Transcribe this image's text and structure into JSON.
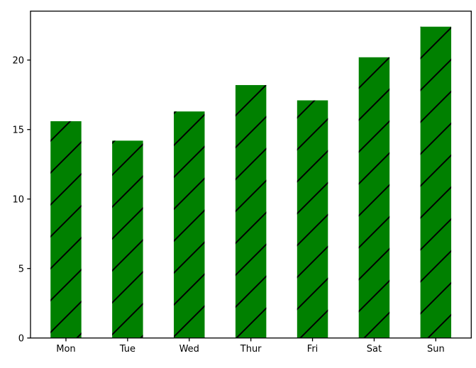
{
  "figure": {
    "background_color": "#ffffff"
  },
  "chart_data": {
    "type": "bar",
    "title": "",
    "xlabel": "",
    "ylabel": "",
    "categories": [
      "Mon",
      "Tue",
      "Wed",
      "Thur",
      "Fri",
      "Sat",
      "Sun"
    ],
    "values": [
      15.6,
      14.2,
      16.3,
      18.2,
      17.1,
      20.2,
      22.4
    ],
    "ylim": [
      0,
      23.52
    ],
    "yticks": [
      0,
      5,
      10,
      15,
      20
    ],
    "ytick_labels": [
      "0",
      "5",
      "10",
      "15",
      "20"
    ],
    "bar_color": "#008000",
    "hatch": "/",
    "hatch_color": "#000000",
    "axis_color": "#000000",
    "grid": false,
    "legend": null,
    "bar_width_fraction": 0.5
  }
}
